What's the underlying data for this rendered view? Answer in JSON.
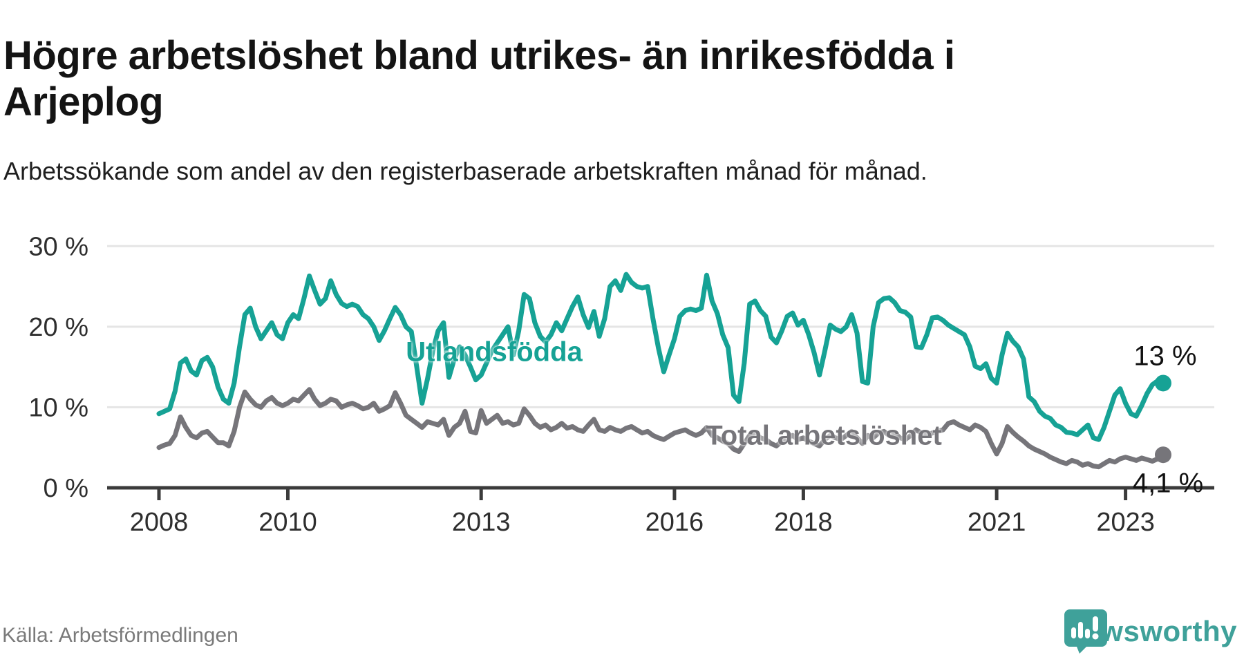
{
  "header": {
    "title": "Högre arbetslöshet bland utrikes- än inrikesfödda i Arjeplog",
    "subtitle": "Arbetssökande som andel av den registerbaserade arbetskraften månad för månad."
  },
  "chart_data": {
    "type": "line",
    "unit": "%",
    "x_start": "2008-01",
    "x_end": "2023-08",
    "ylim": [
      0,
      30
    ],
    "grid": "horizontal",
    "y_ticks": [
      {
        "label": "30 %",
        "value": 30
      },
      {
        "label": "20 %",
        "value": 20
      },
      {
        "label": "10 %",
        "value": 10
      },
      {
        "label": "0 %",
        "value": 0
      }
    ],
    "x_ticks": [
      {
        "label": "2008",
        "year": 2008
      },
      {
        "label": "2010",
        "year": 2010
      },
      {
        "label": "2013",
        "year": 2013
      },
      {
        "label": "2016",
        "year": 2016
      },
      {
        "label": "2018",
        "year": 2018
      },
      {
        "label": "2021",
        "year": 2021
      },
      {
        "label": "2023",
        "year": 2023
      }
    ],
    "series": [
      {
        "name": "Utlandsfödda",
        "color": "#16a295",
        "end_label": "13 %",
        "end_value": 13,
        "values": [
          9.2,
          9.5,
          9.8,
          12.0,
          15.5,
          16.0,
          14.5,
          14.0,
          15.8,
          16.2,
          15.0,
          12.5,
          11.0,
          10.5,
          13.0,
          17.5,
          21.5,
          22.3,
          20.0,
          18.5,
          19.5,
          20.5,
          19.0,
          18.5,
          20.5,
          21.5,
          21.0,
          23.5,
          26.3,
          24.5,
          22.8,
          23.5,
          25.7,
          24.0,
          22.9,
          22.5,
          22.8,
          22.5,
          21.5,
          21.0,
          20.0,
          18.3,
          19.5,
          21.0,
          22.4,
          21.5,
          20.0,
          19.4,
          15.0,
          10.5,
          13.5,
          17.0,
          19.5,
          20.5,
          13.7,
          16.0,
          17.5,
          16.5,
          15.0,
          13.4,
          14.0,
          15.5,
          17.0,
          18.0,
          19.0,
          20.0,
          16.5,
          19.5,
          24.0,
          23.5,
          20.5,
          18.8,
          18.1,
          19.0,
          20.5,
          19.5,
          21.0,
          22.5,
          23.7,
          21.5,
          19.9,
          21.9,
          18.8,
          21.0,
          25.0,
          25.7,
          24.5,
          26.5,
          25.5,
          25.0,
          24.8,
          25.0,
          21.0,
          17.4,
          14.4,
          16.5,
          18.5,
          21.3,
          22.0,
          22.2,
          22.0,
          22.3,
          26.4,
          23.2,
          21.6,
          19.0,
          17.4,
          11.5,
          10.7,
          15.5,
          22.8,
          23.2,
          22.0,
          21.3,
          18.7,
          18.0,
          19.5,
          21.3,
          21.7,
          20.2,
          20.8,
          19.0,
          16.8,
          14.0,
          17.0,
          20.2,
          19.7,
          19.4,
          20.0,
          21.5,
          19.2,
          13.2,
          13.0,
          20.0,
          23.0,
          23.5,
          23.6,
          23.0,
          22.0,
          21.8,
          21.2,
          17.5,
          17.4,
          19.0,
          21.1,
          21.2,
          20.8,
          20.2,
          19.8,
          19.4,
          19.0,
          17.5,
          15.1,
          14.8,
          15.4,
          13.6,
          13.0,
          16.5,
          19.2,
          18.2,
          17.5,
          16.0,
          11.3,
          10.7,
          9.5,
          8.9,
          8.6,
          7.8,
          7.5,
          6.9,
          6.8,
          6.6,
          7.2,
          7.8,
          6.2,
          6.0,
          7.5,
          9.5,
          11.5,
          12.3,
          10.5,
          9.2,
          8.9,
          10.2,
          11.7,
          12.8,
          13.3,
          13.0
        ]
      },
      {
        "name": "Total arbetslöshet",
        "color": "#76757a",
        "end_label": "4,1 %",
        "end_value": 4.1,
        "values": [
          5.0,
          5.3,
          5.5,
          6.5,
          8.8,
          7.5,
          6.5,
          6.2,
          6.8,
          7.0,
          6.3,
          5.6,
          5.6,
          5.2,
          7.0,
          10.0,
          11.9,
          11.0,
          10.3,
          10.0,
          10.8,
          11.2,
          10.5,
          10.2,
          10.5,
          11.0,
          10.8,
          11.5,
          12.2,
          11.0,
          10.2,
          10.5,
          11.0,
          10.8,
          10.0,
          10.3,
          10.5,
          10.2,
          9.8,
          10.0,
          10.5,
          9.5,
          9.8,
          10.2,
          11.8,
          10.5,
          9.0,
          8.5,
          8.0,
          7.5,
          8.2,
          8.0,
          7.8,
          8.5,
          6.5,
          7.5,
          8.0,
          9.5,
          7.0,
          6.8,
          9.6,
          8.0,
          8.5,
          9.0,
          8.0,
          8.2,
          7.8,
          8.0,
          9.8,
          9.0,
          8.0,
          7.5,
          7.8,
          7.2,
          7.5,
          8.0,
          7.4,
          7.6,
          7.2,
          7.0,
          7.8,
          8.5,
          7.2,
          7.0,
          7.5,
          7.2,
          7.0,
          7.4,
          7.6,
          7.2,
          6.8,
          7.0,
          6.5,
          6.2,
          6.0,
          6.4,
          6.8,
          7.0,
          7.2,
          6.8,
          6.5,
          6.8,
          7.5,
          6.5,
          6.2,
          5.8,
          5.5,
          4.8,
          4.5,
          5.5,
          6.5,
          6.8,
          6.2,
          6.0,
          5.5,
          5.2,
          5.8,
          6.2,
          6.5,
          6.0,
          6.2,
          5.8,
          5.5,
          5.2,
          6.0,
          6.5,
          6.2,
          6.0,
          6.5,
          7.0,
          6.2,
          5.5,
          6.5,
          6.2,
          6.8,
          7.0,
          6.5,
          6.8,
          6.2,
          6.0,
          6.5,
          7.2,
          6.8,
          6.5,
          6.8,
          7.0,
          7.2,
          8.0,
          8.2,
          7.8,
          7.5,
          7.2,
          7.8,
          7.5,
          7.0,
          5.5,
          4.2,
          5.5,
          7.6,
          6.9,
          6.3,
          5.8,
          5.2,
          4.8,
          4.5,
          4.2,
          3.8,
          3.5,
          3.2,
          3.0,
          3.4,
          3.2,
          2.8,
          3.0,
          2.7,
          2.6,
          3.0,
          3.4,
          3.2,
          3.6,
          3.8,
          3.6,
          3.4,
          3.7,
          3.5,
          3.3,
          3.6,
          4.1
        ]
      }
    ]
  },
  "footer": {
    "source": "Källa: Arbetsförmedlingen",
    "brand": "Newsworthy"
  },
  "colors": {
    "teal": "#16a295",
    "gray": "#76757a",
    "gridline": "#e5e5e5",
    "axis": "#3b3b3b",
    "text": "#2e2e2e",
    "brand_teal": "#3fa19a"
  }
}
